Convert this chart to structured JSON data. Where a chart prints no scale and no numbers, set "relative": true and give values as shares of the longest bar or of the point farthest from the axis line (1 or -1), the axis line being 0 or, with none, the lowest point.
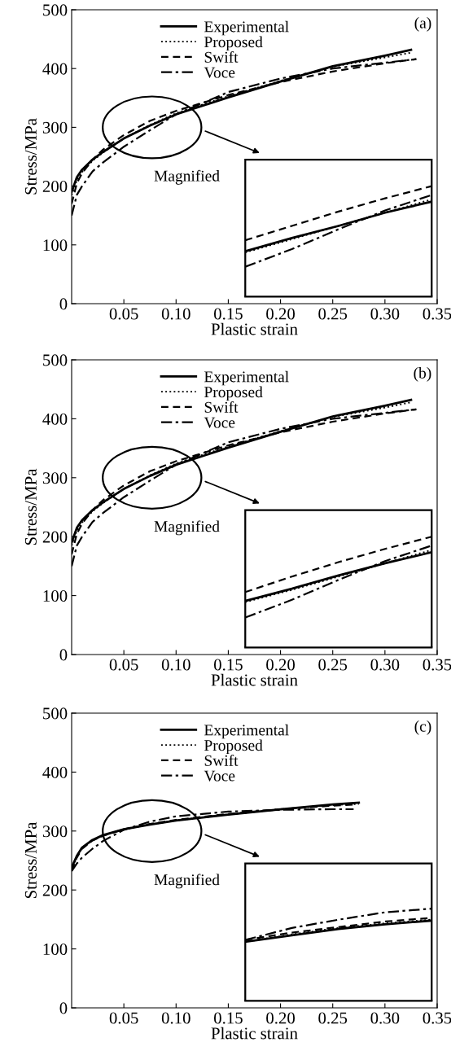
{
  "chart_data": [
    {
      "type": "line",
      "xlabel": "Plastic strain",
      "ylabel": "Stress/MPa",
      "xlim": [
        0,
        0.35
      ],
      "ylim": [
        0,
        500
      ],
      "xticks": [
        {
          "value": 0.05,
          "label": "0.05"
        },
        {
          "value": 0.1,
          "label": "0.10"
        },
        {
          "value": 0.15,
          "label": "0.15"
        },
        {
          "value": 0.2,
          "label": "0.20"
        },
        {
          "value": 0.25,
          "label": "0.25"
        },
        {
          "value": 0.3,
          "label": "0.30"
        },
        {
          "value": 0.35,
          "label": "0.35"
        }
      ],
      "yticks": [
        0,
        100,
        200,
        300,
        400,
        500
      ],
      "legend": "top",
      "grid": false,
      "annotations": [
        "(a)",
        "Magnified"
      ],
      "series": [
        {
          "name": "Experimental",
          "color": "#000000",
          "line_style": "solid",
          "x": [
            0,
            0.005,
            0.01,
            0.02,
            0.03,
            0.05,
            0.075,
            0.1,
            0.15,
            0.2,
            0.25,
            0.3,
            0.325
          ],
          "values": [
            190,
            215,
            228,
            245,
            258,
            281,
            303,
            322,
            351,
            378,
            404,
            422,
            432
          ]
        },
        {
          "name": "Proposed",
          "color": "#000000",
          "line_style": "dotted",
          "x": [
            0,
            0.005,
            0.01,
            0.02,
            0.03,
            0.05,
            0.075,
            0.1,
            0.15,
            0.2,
            0.25,
            0.3,
            0.325
          ],
          "values": [
            185,
            210,
            224,
            243,
            257,
            281,
            304,
            324,
            353,
            379,
            403,
            419,
            427
          ]
        },
        {
          "name": "Swift",
          "color": "#000000",
          "line_style": "dashed",
          "x": [
            0,
            0.005,
            0.01,
            0.02,
            0.03,
            0.05,
            0.075,
            0.1,
            0.15,
            0.2,
            0.25,
            0.3,
            0.33
          ],
          "values": [
            170,
            205,
            222,
            245,
            262,
            287,
            311,
            328,
            355,
            377,
            395,
            409,
            416
          ]
        },
        {
          "name": "Voce",
          "color": "#000000",
          "line_style": "dashdot",
          "x": [
            0,
            0.005,
            0.01,
            0.02,
            0.03,
            0.05,
            0.075,
            0.1,
            0.15,
            0.2,
            0.25,
            0.3,
            0.33
          ],
          "values": [
            150,
            185,
            200,
            225,
            240,
            267,
            295,
            322,
            360,
            383,
            400,
            410,
            416
          ]
        }
      ]
    },
    {
      "type": "line",
      "relative": true,
      "categories": [
        null,
        null,
        null,
        null,
        null
      ],
      "series": [
        {
          "color": "#000000",
          "line_style": "solid",
          "values": [
            0.41,
            0.53,
            0.64,
            0.76,
            0.86
          ]
        },
        {
          "color": "#000000",
          "line_style": "dotted",
          "values": [
            0.4,
            0.52,
            0.64,
            0.76,
            0.88
          ]
        },
        {
          "color": "#000000",
          "line_style": "dashed",
          "values": [
            0.51,
            0.64,
            0.77,
            0.89,
            1
          ]
        },
        {
          "color": "#000000",
          "line_style": "dashdot",
          "values": [
            0.27,
            0.43,
            0.61,
            0.78,
            0.92
          ]
        }
      ]
    },
    {
      "type": "line",
      "xlabel": "Plastic strain",
      "ylabel": "Stress/MPa",
      "xlim": [
        0,
        0.35
      ],
      "ylim": [
        0,
        500
      ],
      "xticks": [
        {
          "value": 0.05,
          "label": "0.05"
        },
        {
          "value": 0.1,
          "label": "0.10"
        },
        {
          "value": 0.15,
          "label": "0.15"
        },
        {
          "value": 0.2,
          "label": "0.20"
        },
        {
          "value": 0.25,
          "label": "0.25"
        },
        {
          "value": 0.3,
          "label": "0.30"
        },
        {
          "value": 0.35,
          "label": "0.35"
        }
      ],
      "yticks": [
        0,
        100,
        200,
        300,
        400,
        500
      ],
      "legend": "top",
      "grid": false,
      "annotations": [
        "(b)",
        "Magnified"
      ],
      "series": [
        {
          "name": "Experimental",
          "color": "#000000",
          "line_style": "solid",
          "x": [
            0,
            0.005,
            0.01,
            0.02,
            0.03,
            0.05,
            0.075,
            0.1,
            0.15,
            0.2,
            0.25,
            0.3,
            0.325
          ],
          "values": [
            190,
            215,
            228,
            245,
            258,
            281,
            303,
            322,
            351,
            378,
            404,
            422,
            432
          ]
        },
        {
          "name": "Proposed",
          "color": "#000000",
          "line_style": "dotted",
          "x": [
            0,
            0.005,
            0.01,
            0.02,
            0.03,
            0.05,
            0.075,
            0.1,
            0.15,
            0.2,
            0.25,
            0.3,
            0.325
          ],
          "values": [
            185,
            210,
            224,
            243,
            257,
            281,
            304,
            324,
            353,
            379,
            403,
            419,
            428
          ]
        },
        {
          "name": "Swift",
          "color": "#000000",
          "line_style": "dashed",
          "x": [
            0,
            0.005,
            0.01,
            0.02,
            0.03,
            0.05,
            0.075,
            0.1,
            0.15,
            0.2,
            0.25,
            0.3,
            0.33
          ],
          "values": [
            170,
            205,
            222,
            245,
            262,
            287,
            311,
            328,
            355,
            377,
            395,
            409,
            416
          ]
        },
        {
          "name": "Voce",
          "color": "#000000",
          "line_style": "dashdot",
          "x": [
            0,
            0.005,
            0.01,
            0.02,
            0.03,
            0.05,
            0.075,
            0.1,
            0.15,
            0.2,
            0.25,
            0.3,
            0.33
          ],
          "values": [
            150,
            185,
            200,
            225,
            240,
            267,
            295,
            322,
            360,
            383,
            400,
            410,
            416
          ]
        }
      ]
    },
    {
      "type": "line",
      "relative": true,
      "categories": [
        null,
        null,
        null,
        null,
        null
      ],
      "series": [
        {
          "color": "#000000",
          "line_style": "solid",
          "values": [
            0.42,
            0.53,
            0.65,
            0.76,
            0.86
          ]
        },
        {
          "color": "#000000",
          "line_style": "dotted",
          "values": [
            0.41,
            0.52,
            0.64,
            0.76,
            0.88
          ]
        },
        {
          "color": "#000000",
          "line_style": "dashed",
          "values": [
            0.5,
            0.64,
            0.77,
            0.89,
            1
          ]
        },
        {
          "color": "#000000",
          "line_style": "dashdot",
          "values": [
            0.27,
            0.43,
            0.61,
            0.78,
            0.92
          ]
        }
      ]
    },
    {
      "type": "line",
      "xlabel": "Plastic strain",
      "ylabel": "Stress/MPa",
      "xlim": [
        0,
        0.35
      ],
      "ylim": [
        0,
        500
      ],
      "xticks": [
        {
          "value": 0.05,
          "label": "0.05"
        },
        {
          "value": 0.1,
          "label": "0.10"
        },
        {
          "value": 0.15,
          "label": "0.15"
        },
        {
          "value": 0.2,
          "label": "0.20"
        },
        {
          "value": 0.25,
          "label": "0.25"
        },
        {
          "value": 0.3,
          "label": "0.30"
        },
        {
          "value": 0.35,
          "label": "0.35"
        }
      ],
      "yticks": [
        0,
        100,
        200,
        300,
        400,
        500
      ],
      "legend": "top",
      "grid": false,
      "annotations": [
        "(c)",
        "Magnified"
      ],
      "series": [
        {
          "name": "Experimental",
          "color": "#000000",
          "line_style": "solid",
          "x": [
            0,
            0.005,
            0.01,
            0.02,
            0.03,
            0.05,
            0.075,
            0.1,
            0.15,
            0.2,
            0.25,
            0.275
          ],
          "values": [
            238,
            258,
            272,
            285,
            293,
            303,
            311,
            318,
            328,
            337,
            345,
            348
          ]
        },
        {
          "name": "Proposed",
          "color": "#000000",
          "line_style": "dotted",
          "x": [
            0,
            0.005,
            0.01,
            0.02,
            0.03,
            0.05,
            0.075,
            0.1,
            0.15,
            0.2,
            0.25,
            0.275
          ],
          "values": [
            234,
            256,
            271,
            284,
            292,
            303,
            311,
            318,
            328,
            337,
            344,
            346
          ]
        },
        {
          "name": "Swift",
          "color": "#000000",
          "line_style": "dashed",
          "x": [
            0,
            0.005,
            0.01,
            0.02,
            0.03,
            0.05,
            0.075,
            0.1,
            0.15,
            0.2,
            0.25,
            0.27
          ],
          "values": [
            233,
            255,
            270,
            284,
            292,
            303,
            312,
            319,
            329,
            337,
            343,
            345
          ]
        },
        {
          "name": "Voce",
          "color": "#000000",
          "line_style": "dashdot",
          "x": [
            0,
            0.005,
            0.01,
            0.02,
            0.03,
            0.05,
            0.075,
            0.1,
            0.15,
            0.2,
            0.25,
            0.27
          ],
          "values": [
            232,
            245,
            255,
            270,
            283,
            302,
            316,
            325,
            333,
            336,
            337,
            337
          ]
        }
      ]
    },
    {
      "type": "line",
      "relative": true,
      "categories": [
        null,
        null,
        null,
        null,
        null
      ],
      "series": [
        {
          "color": "#000000",
          "line_style": "solid",
          "values": [
            0.64,
            0.71,
            0.78,
            0.83,
            0.87
          ]
        },
        {
          "color": "#000000",
          "line_style": "dotted",
          "values": [
            0.64,
            0.72,
            0.79,
            0.84,
            0.88
          ]
        },
        {
          "color": "#000000",
          "line_style": "dashed",
          "values": [
            0.66,
            0.74,
            0.8,
            0.86,
            0.9
          ]
        },
        {
          "color": "#000000",
          "line_style": "dashdot",
          "values": [
            0.66,
            0.79,
            0.88,
            0.96,
            1
          ]
        }
      ]
    }
  ]
}
